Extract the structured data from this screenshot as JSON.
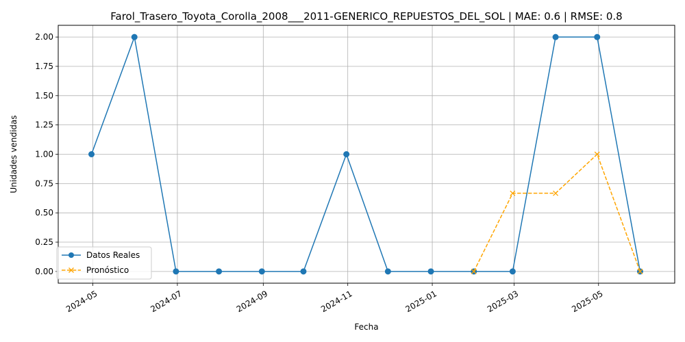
{
  "chart_data": {
    "type": "line",
    "title": "Farol_Trasero_Toyota_Corolla_2008___2011-GENERICO_REPUESTOS_DEL_SOL | MAE: 0.6 | RMSE: 0.8",
    "xlabel": "Fecha",
    "ylabel": "Unidades vendidas",
    "xlim": [
      "2024-04-06",
      "2025-06-25"
    ],
    "ylim": [
      -0.1,
      2.1
    ],
    "x_ticks": [
      "2024-05",
      "2024-07",
      "2024-09",
      "2024-11",
      "2025-01",
      "2025-03",
      "2025-05"
    ],
    "y_ticks": [
      "0.00",
      "0.25",
      "0.50",
      "0.75",
      "1.00",
      "1.25",
      "1.50",
      "1.75",
      "2.00"
    ],
    "grid": true,
    "legend_position": "lower-left",
    "series": [
      {
        "name": "Datos Reales",
        "color": "#1f77b4",
        "style": "solid",
        "marker": "circle",
        "x": [
          "2024-04-30",
          "2024-05-31",
          "2024-06-30",
          "2024-07-31",
          "2024-08-31",
          "2024-09-30",
          "2024-10-31",
          "2024-11-30",
          "2024-12-31",
          "2025-01-31",
          "2025-02-28",
          "2025-03-31",
          "2025-04-30",
          "2025-05-31"
        ],
        "values": [
          1,
          2,
          0,
          0,
          0,
          0,
          1,
          0,
          0,
          0,
          0,
          2,
          2,
          0
        ]
      },
      {
        "name": "Pronóstico",
        "color": "#ffa500",
        "style": "dashed",
        "marker": "x",
        "x": [
          "2025-01-31",
          "2025-02-28",
          "2025-03-31",
          "2025-04-30",
          "2025-05-31"
        ],
        "values": [
          0,
          0.667,
          0.667,
          1,
          0
        ]
      }
    ]
  }
}
